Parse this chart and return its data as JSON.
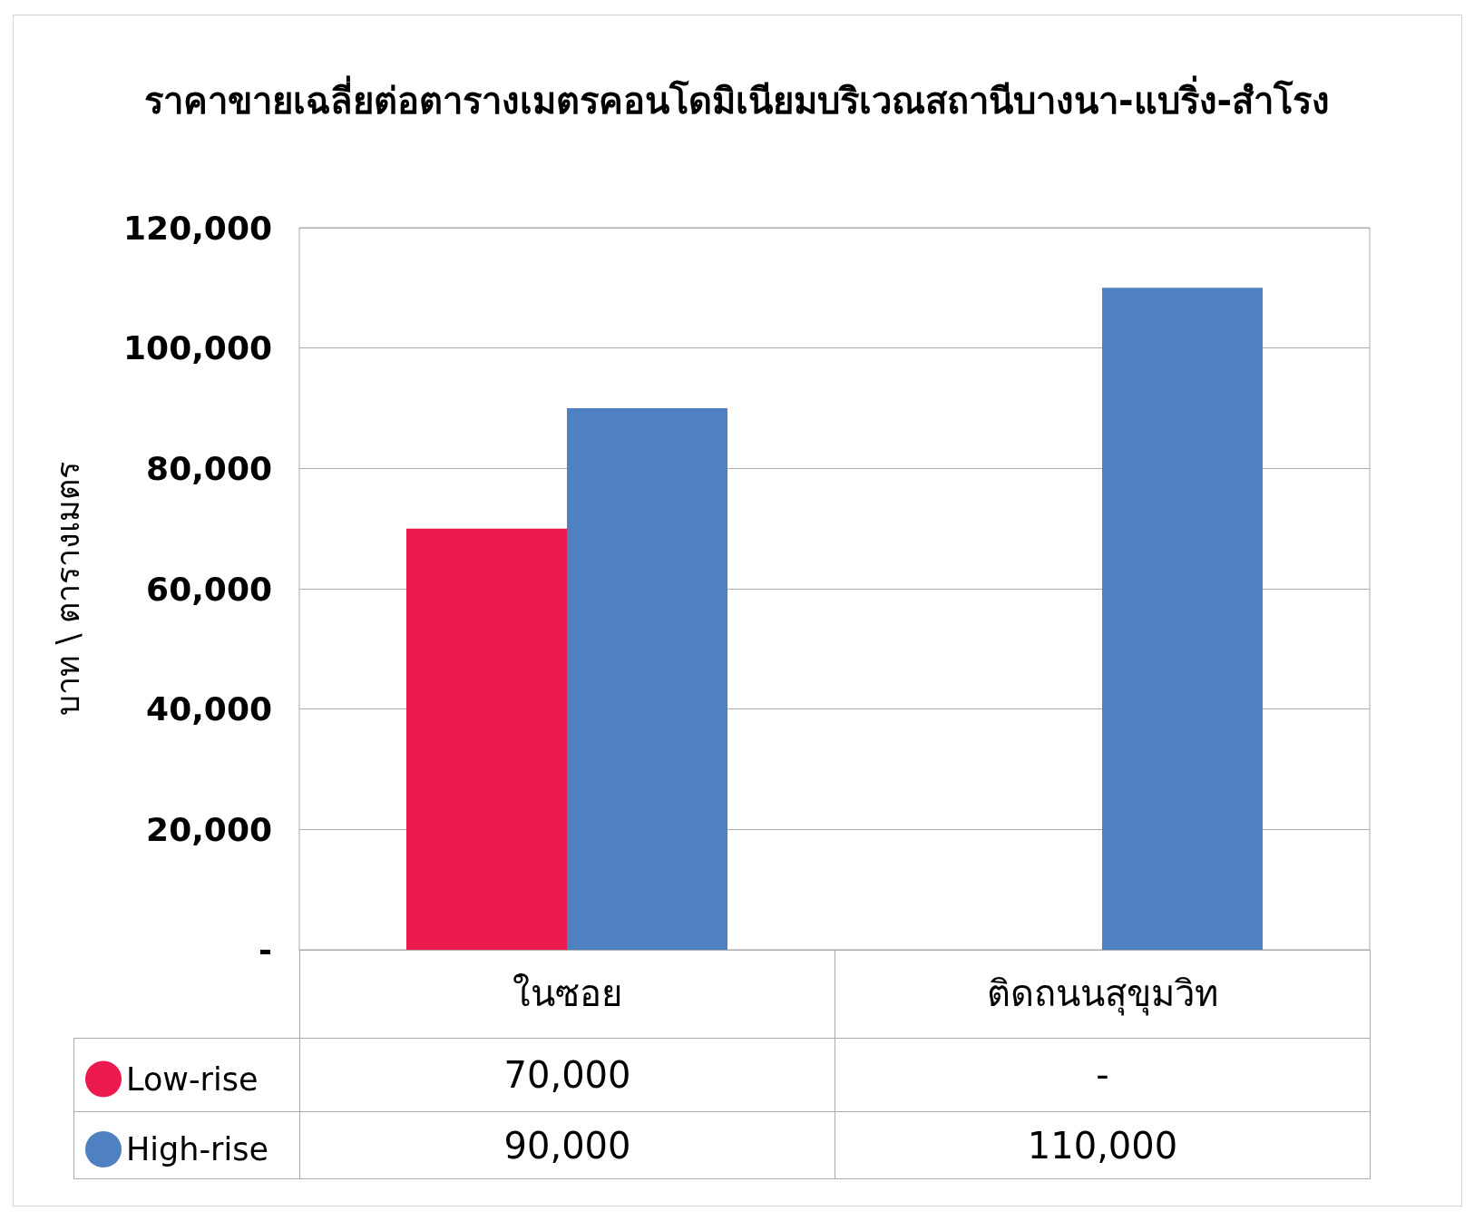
{
  "chart_data": {
    "type": "bar",
    "title": "ราคาขายเฉลี่ยต่อตารางเมตรคอนโดมิเนียมบริเวณสถานีบางนา-แบริ่ง-สำโรง",
    "ylabel": "บาท \\ ตารางเมตร",
    "categories": [
      "ในซอย",
      "ติดถนนสุขุมวิท"
    ],
    "series": [
      {
        "name": "Low-rise",
        "color": "#ed1a4f",
        "values": [
          70000,
          null
        ],
        "value_labels": [
          "70,000",
          "-"
        ]
      },
      {
        "name": "High-rise",
        "color": "#4f81c2",
        "values": [
          90000,
          110000
        ],
        "value_labels": [
          "90,000",
          "110,000"
        ]
      }
    ],
    "ylim": [
      0,
      120000
    ],
    "yticks": [
      {
        "value": 0,
        "label": "-"
      },
      {
        "value": 20000,
        "label": "20,000"
      },
      {
        "value": 40000,
        "label": "40,000"
      },
      {
        "value": 60000,
        "label": "60,000"
      },
      {
        "value": 80000,
        "label": "80,000"
      },
      {
        "value": 100000,
        "label": "100,000"
      },
      {
        "value": 120000,
        "label": "120,000"
      }
    ],
    "grid": "y",
    "legend": "bottom left"
  }
}
